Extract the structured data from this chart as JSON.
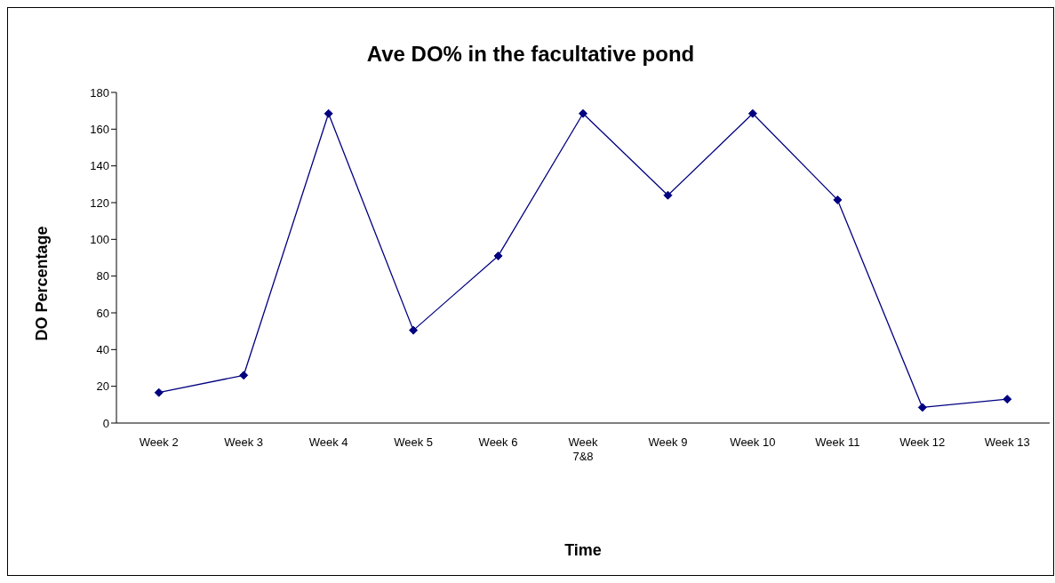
{
  "chart_data": {
    "type": "line",
    "title": "Ave DO% in the facultative pond",
    "xlabel": "Time",
    "ylabel": "DO Percentage",
    "categories": [
      "Week 2",
      "Week 3",
      "Week 4",
      "Week 5",
      "Week 6",
      "Week 7&8",
      "Week 9",
      "Week 10",
      "Week 11",
      "Week 12",
      "Week 13"
    ],
    "series": [
      {
        "color": "#000080",
        "values": [
          16.6,
          26,
          168.5,
          50.5,
          91,
          168.5,
          124,
          168.5,
          121.5,
          8.5,
          13
        ]
      }
    ],
    "ylim": [
      0,
      180
    ],
    "yticks": [
      0,
      20,
      40,
      60,
      80,
      100,
      120,
      140,
      160,
      180
    ],
    "grid": false,
    "legend": false,
    "marker": "diamond",
    "line_style": "solid"
  }
}
